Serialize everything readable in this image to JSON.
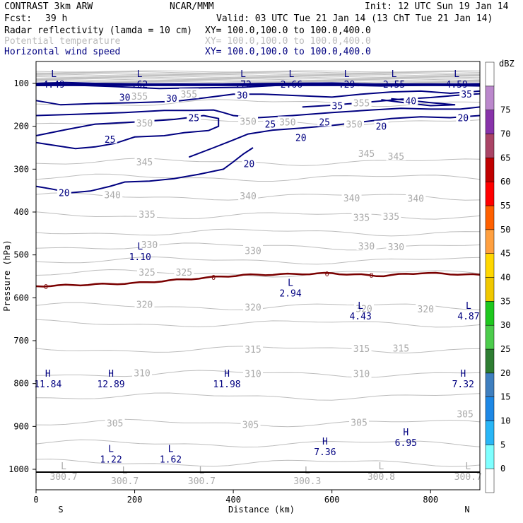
{
  "header": {
    "model": "CONTRAST  3km ARW",
    "center": "NCAR/MMM",
    "init": "Init: 12 UTC Sun 19 Jan 14",
    "fcst_label": "Fcst:",
    "fcst_value": "39 h",
    "valid": "Valid: 03 UTC Tue 21 Jan 14 (13 ChT Tue 21 Jan 14)",
    "fields": [
      {
        "name": "Radar reflectivity (lamda = 10 cm)",
        "xy": "XY= 100.0,100.0 to 100.0,400.0",
        "color": "#000000"
      },
      {
        "name": "Potential temperature",
        "xy": "XY= 100.0,100.0 to 100.0,400.0",
        "color": "#bbbbbb"
      },
      {
        "name": "Horizontal wind speed",
        "xy": "XY= 100.0,100.0 to 100.0,400.0",
        "color": "#000080"
      }
    ]
  },
  "chart_data": {
    "type": "cross-section contour",
    "xlabel": "Distance (km)",
    "ylabel": "Pressure (hPa)",
    "xlim": [
      0,
      900
    ],
    "ylim": [
      1050,
      70
    ],
    "x_ticks": [
      0,
      200,
      400,
      600,
      800
    ],
    "y_ticks": [
      100,
      200,
      300,
      400,
      500,
      600,
      700,
      800,
      900,
      1000
    ],
    "end_labels": {
      "left": "S",
      "right": "N"
    },
    "colorbar": {
      "unit": "dBZ",
      "levels": [
        0,
        5,
        10,
        15,
        20,
        25,
        30,
        35,
        40,
        45,
        50,
        55,
        60,
        65,
        70,
        75
      ],
      "colors": [
        "#ffffff",
        "#7fffff",
        "#29b6f6",
        "#1e88e5",
        "#3f7fbf",
        "#2e7d32",
        "#4ccc4c",
        "#1ec81e",
        "#f0c800",
        "#ffd700",
        "#ffa040",
        "#ff6000",
        "#ff0000",
        "#c00000",
        "#aa4466",
        "#8833aa",
        "#bb88cc",
        "#ffffff"
      ]
    },
    "theta_labels": [
      {
        "label": "355",
        "x": 210,
        "p": 130
      },
      {
        "label": "355",
        "x": 310,
        "p": 125
      },
      {
        "label": "355",
        "x": 660,
        "p": 145
      },
      {
        "label": "350",
        "x": 220,
        "p": 192
      },
      {
        "label": "350",
        "x": 430,
        "p": 188
      },
      {
        "label": "350",
        "x": 510,
        "p": 190
      },
      {
        "label": "350",
        "x": 645,
        "p": 195
      },
      {
        "label": "345",
        "x": 220,
        "p": 283
      },
      {
        "label": "345",
        "x": 670,
        "p": 263
      },
      {
        "label": "345",
        "x": 730,
        "p": 270
      },
      {
        "label": "340",
        "x": 155,
        "p": 360
      },
      {
        "label": "340",
        "x": 430,
        "p": 362
      },
      {
        "label": "340",
        "x": 640,
        "p": 367
      },
      {
        "label": "340",
        "x": 770,
        "p": 368
      },
      {
        "label": "335",
        "x": 225,
        "p": 405
      },
      {
        "label": "335",
        "x": 660,
        "p": 412
      },
      {
        "label": "335",
        "x": 720,
        "p": 410
      },
      {
        "label": "330",
        "x": 230,
        "p": 476
      },
      {
        "label": "330",
        "x": 440,
        "p": 490
      },
      {
        "label": "330",
        "x": 670,
        "p": 479
      },
      {
        "label": "330",
        "x": 730,
        "p": 481
      },
      {
        "label": "325",
        "x": 225,
        "p": 540
      },
      {
        "label": "325",
        "x": 300,
        "p": 540
      },
      {
        "label": "320",
        "x": 220,
        "p": 615
      },
      {
        "label": "320",
        "x": 440,
        "p": 622
      },
      {
        "label": "320",
        "x": 665,
        "p": 625
      },
      {
        "label": "320",
        "x": 790,
        "p": 626
      },
      {
        "label": "315",
        "x": 440,
        "p": 720
      },
      {
        "label": "315",
        "x": 660,
        "p": 718
      },
      {
        "label": "315",
        "x": 740,
        "p": 717
      },
      {
        "label": "310",
        "x": 215,
        "p": 775
      },
      {
        "label": "310",
        "x": 440,
        "p": 777
      },
      {
        "label": "310",
        "x": 660,
        "p": 777
      },
      {
        "label": "305",
        "x": 160,
        "p": 892
      },
      {
        "label": "305",
        "x": 435,
        "p": 895
      },
      {
        "label": "305",
        "x": 655,
        "p": 890
      },
      {
        "label": "305",
        "x": 870,
        "p": 871
      }
    ],
    "wind_labels": [
      {
        "label": "30",
        "x": 180,
        "p": 132
      },
      {
        "label": "30",
        "x": 275,
        "p": 135
      },
      {
        "label": "30",
        "x": 418,
        "p": 127
      },
      {
        "label": "35",
        "x": 611,
        "p": 152
      },
      {
        "label": "40",
        "x": 760,
        "p": 140
      },
      {
        "label": "35",
        "x": 873,
        "p": 125
      },
      {
        "label": "25",
        "x": 320,
        "p": 180
      },
      {
        "label": "25",
        "x": 150,
        "p": 230
      },
      {
        "label": "25",
        "x": 475,
        "p": 195
      },
      {
        "label": "25",
        "x": 585,
        "p": 190
      },
      {
        "label": "20",
        "x": 700,
        "p": 200
      },
      {
        "label": "20",
        "x": 866,
        "p": 180
      },
      {
        "label": "20",
        "x": 537,
        "p": 226
      },
      {
        "label": "20",
        "x": 432,
        "p": 287
      },
      {
        "label": "20",
        "x": 57,
        "p": 355
      }
    ],
    "max_min_markers": [
      {
        "type": "L",
        "value": "4.49",
        "x": 36,
        "p": 85,
        "field": "wind"
      },
      {
        "type": "L",
        "value": ".62",
        "x": 210,
        "p": 85,
        "field": "wind"
      },
      {
        "type": "L",
        "value": ".72",
        "x": 420,
        "p": 85,
        "field": "wind"
      },
      {
        "type": "L",
        "value": "2.66",
        "x": 518,
        "p": 85,
        "field": "wind"
      },
      {
        "type": "L",
        "value": ".29",
        "x": 630,
        "p": 85,
        "field": "wind"
      },
      {
        "type": "L",
        "value": "2.55",
        "x": 726,
        "p": 85,
        "field": "wind"
      },
      {
        "type": "L",
        "value": "4.59",
        "x": 853,
        "p": 85,
        "field": "wind"
      },
      {
        "type": "L",
        "value": "1.10",
        "x": 211,
        "p": 487,
        "field": "wind"
      },
      {
        "type": "L",
        "value": "2.94",
        "x": 516,
        "p": 572,
        "field": "wind"
      },
      {
        "type": "L",
        "value": "4.43",
        "x": 658,
        "p": 626,
        "field": "wind"
      },
      {
        "type": "L",
        "value": "4.87",
        "x": 877,
        "p": 626,
        "field": "wind"
      },
      {
        "type": "H",
        "value": "11.84",
        "x": 24,
        "p": 784,
        "field": "wind"
      },
      {
        "type": "H",
        "value": "12.89",
        "x": 152,
        "p": 784,
        "field": "wind"
      },
      {
        "type": "H",
        "value": "11.98",
        "x": 387,
        "p": 784,
        "field": "wind"
      },
      {
        "type": "H",
        "value": "7.32",
        "x": 866,
        "p": 784,
        "field": "wind"
      },
      {
        "type": "H",
        "value": "7.36",
        "x": 586,
        "p": 942,
        "field": "wind"
      },
      {
        "type": "H",
        "value": "6.95",
        "x": 750,
        "p": 921,
        "field": "wind"
      },
      {
        "type": "L",
        "value": "1.22",
        "x": 152,
        "p": 960,
        "field": "wind"
      },
      {
        "type": "L",
        "value": "1.62",
        "x": 273,
        "p": 960,
        "field": "wind"
      },
      {
        "type": "L",
        "value": "300.7",
        "x": 56,
        "p": 1000,
        "field": "theta"
      },
      {
        "type": "L",
        "value": "300.7",
        "x": 180,
        "p": 1010,
        "field": "theta"
      },
      {
        "type": "L",
        "value": "300.7",
        "x": 336,
        "p": 1010,
        "field": "theta"
      },
      {
        "type": "L",
        "value": "300.3",
        "x": 550,
        "p": 1010,
        "field": "theta"
      },
      {
        "type": "L",
        "value": "300.8",
        "x": 700,
        "p": 1000,
        "field": "theta"
      },
      {
        "type": "L",
        "value": "300.7",
        "x": 876,
        "p": 1000,
        "field": "theta"
      }
    ],
    "reflectivity_contour": {
      "label": "0",
      "p_profile": [
        [
          0,
          573
        ],
        [
          200,
          566
        ],
        [
          360,
          552
        ],
        [
          420,
          547
        ],
        [
          600,
          543
        ],
        [
          700,
          549
        ],
        [
          780,
          542
        ],
        [
          900,
          547
        ]
      ]
    }
  }
}
